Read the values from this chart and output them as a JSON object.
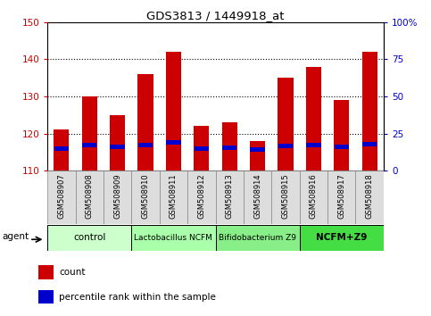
{
  "title": "GDS3813 / 1449918_at",
  "samples": [
    "GSM508907",
    "GSM508908",
    "GSM508909",
    "GSM508910",
    "GSM508911",
    "GSM508912",
    "GSM508913",
    "GSM508914",
    "GSM508915",
    "GSM508916",
    "GSM508917",
    "GSM508918"
  ],
  "count_values": [
    121,
    130,
    125,
    136,
    142,
    122,
    123,
    118,
    135,
    138,
    129,
    142
  ],
  "percentile_values": [
    15,
    17,
    16,
    17.5,
    19,
    15,
    15.5,
    14.5,
    16.5,
    17.5,
    16,
    18
  ],
  "bar_bottom": 110,
  "ylim_left": [
    110,
    150
  ],
  "ylim_right": [
    0,
    100
  ],
  "yticks_left": [
    110,
    120,
    130,
    140,
    150
  ],
  "yticks_right": [
    0,
    25,
    50,
    75,
    100
  ],
  "ytick_labels_right": [
    "0",
    "25",
    "50",
    "75",
    "100%"
  ],
  "bar_color": "#cc0000",
  "percentile_color": "#0000cc",
  "bar_width": 0.55,
  "groups": [
    {
      "label": "control",
      "start": 0,
      "end": 3,
      "color": "#ccffcc",
      "bold": false
    },
    {
      "label": "Lactobacillus NCFM",
      "start": 3,
      "end": 6,
      "color": "#aaffaa",
      "bold": false
    },
    {
      "label": "Bifidobacterium Z9",
      "start": 6,
      "end": 9,
      "color": "#88ee88",
      "bold": false
    },
    {
      "label": "NCFM+Z9",
      "start": 9,
      "end": 12,
      "color": "#44dd44",
      "bold": true
    }
  ],
  "legend_count_color": "#cc0000",
  "legend_percentile_color": "#0000cc",
  "agent_label": "agent",
  "tick_color_left": "#cc0000",
  "tick_color_right": "#0000cc",
  "sample_box_color": "#dddddd",
  "sample_box_edge": "#888888"
}
